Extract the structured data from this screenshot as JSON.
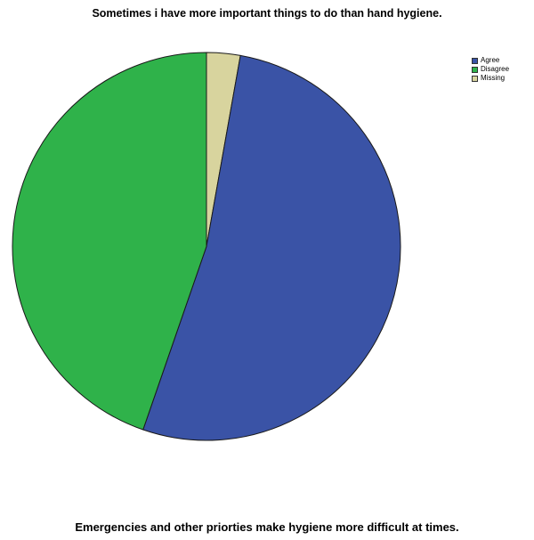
{
  "chart_data": {
    "type": "pie",
    "title": "Sometimes i have more important things to do than hand hygiene.",
    "categories": [
      "Agree",
      "Disagree",
      "Missing"
    ],
    "values": [
      52.5,
      44.7,
      2.8
    ],
    "colors": [
      "#3a53a6",
      "#2fb24a",
      "#d8d49e"
    ],
    "legend_position": "top-right"
  },
  "next_chart_title": "Emergencies and other priorties make hygiene more difficult at times."
}
